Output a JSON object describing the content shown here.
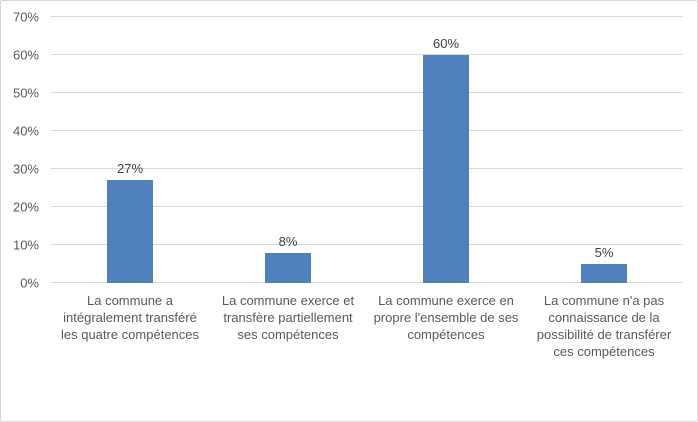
{
  "chart_data": {
    "type": "bar",
    "title": "",
    "xlabel": "",
    "ylabel": "",
    "categories": [
      "La commune a intégralement transféré les quatre compétences",
      "La commune exerce et transfère partiellement ses compétences",
      "La commune exerce en propre l'ensemble de ses compétences",
      "La commune n'a pas connaissance de la possibilité de transférer ces compétences"
    ],
    "values": [
      27,
      8,
      60,
      5
    ],
    "data_labels": [
      "27%",
      "8%",
      "60%",
      "5%"
    ],
    "ylim": [
      0,
      70
    ],
    "ytick_step": 10,
    "ytick_labels": [
      "0%",
      "10%",
      "20%",
      "30%",
      "40%",
      "50%",
      "60%",
      "70%"
    ],
    "grid": true,
    "legend": "none",
    "bar_color": "#4f81bd",
    "gridline_color": "#d9d9d9",
    "axis_text_color": "#595959",
    "data_label_color": "#404040"
  }
}
